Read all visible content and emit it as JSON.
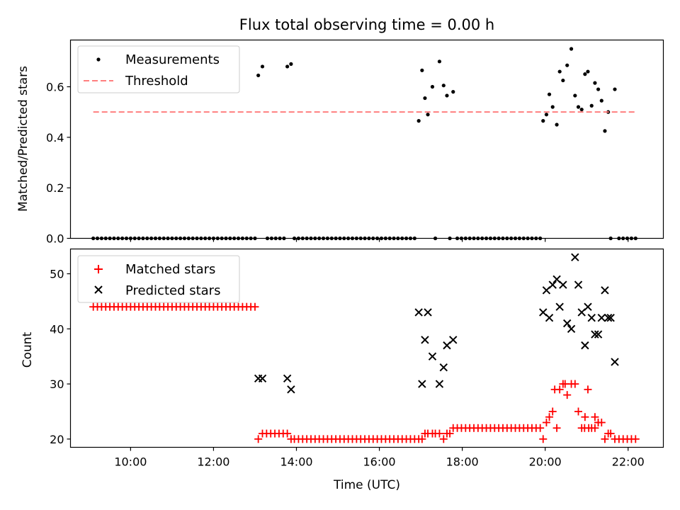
{
  "chart_data": [
    {
      "type": "scatter",
      "title": "Flux total observing time = 0.00 h",
      "xlabel": "",
      "ylabel": "Matched/Predicted stars",
      "xlim": [
        8.55,
        22.85
      ],
      "ylim": [
        0,
        0.785
      ],
      "yticks": [
        0.0,
        0.2,
        0.4,
        0.6
      ],
      "ytick_labels": [
        "0.0",
        "0.2",
        "0.4",
        "0.6"
      ],
      "xticks": [
        10,
        12,
        14,
        16,
        18,
        20,
        22
      ],
      "legend": {
        "placement": "top-left",
        "entries": [
          "Measurements",
          "Threshold"
        ]
      },
      "colors": {
        "measurements": "#000000",
        "threshold": "#ff7f7f"
      },
      "series": [
        {
          "name": "Measurements",
          "marker": "dot",
          "x": [
            9.1,
            9.2,
            9.3,
            9.4,
            9.5,
            9.6,
            9.7,
            9.8,
            9.9,
            10.0,
            10.1,
            10.2,
            10.3,
            10.4,
            10.5,
            10.6,
            10.7,
            10.8,
            10.9,
            11.0,
            11.1,
            11.2,
            11.3,
            11.4,
            11.5,
            11.6,
            11.7,
            11.8,
            11.9,
            12.0,
            12.1,
            12.2,
            12.3,
            12.4,
            12.5,
            12.6,
            12.7,
            12.8,
            12.9,
            13.0,
            13.08,
            13.18,
            13.3,
            13.4,
            13.5,
            13.6,
            13.7,
            13.78,
            13.87,
            13.95,
            14.05,
            14.15,
            14.25,
            14.35,
            14.45,
            14.55,
            14.65,
            14.75,
            14.85,
            14.95,
            15.05,
            15.15,
            15.25,
            15.35,
            15.45,
            15.55,
            15.65,
            15.75,
            15.85,
            15.95,
            16.05,
            16.15,
            16.25,
            16.35,
            16.45,
            16.55,
            16.65,
            16.75,
            16.85,
            16.95,
            17.03,
            17.1,
            17.17,
            17.28,
            17.35,
            17.45,
            17.55,
            17.63,
            17.7,
            17.78,
            17.88,
            17.98,
            18.08,
            18.18,
            18.28,
            18.38,
            18.48,
            18.58,
            18.68,
            18.78,
            18.88,
            18.98,
            19.08,
            19.18,
            19.28,
            19.38,
            19.48,
            19.58,
            19.68,
            19.78,
            19.88,
            19.95,
            20.03,
            20.1,
            20.18,
            20.28,
            20.35,
            20.43,
            20.53,
            20.63,
            20.72,
            20.8,
            20.88,
            20.96,
            21.03,
            21.12,
            21.2,
            21.28,
            21.36,
            21.44,
            21.52,
            21.58,
            21.68,
            21.78,
            21.88,
            21.98,
            22.08,
            22.18
          ],
          "y": [
            0,
            0,
            0,
            0,
            0,
            0,
            0,
            0,
            0,
            0,
            0,
            0,
            0,
            0,
            0,
            0,
            0,
            0,
            0,
            0,
            0,
            0,
            0,
            0,
            0,
            0,
            0,
            0,
            0,
            0,
            0,
            0,
            0,
            0,
            0,
            0,
            0,
            0,
            0,
            0,
            0.645,
            0.68,
            0,
            0,
            0,
            0,
            0,
            0.68,
            0.69,
            0,
            0,
            0,
            0,
            0,
            0,
            0,
            0,
            0,
            0,
            0,
            0,
            0,
            0,
            0,
            0,
            0,
            0,
            0,
            0,
            0,
            0,
            0,
            0,
            0,
            0,
            0,
            0,
            0,
            0,
            0.465,
            0.665,
            0.555,
            0.49,
            0.6,
            0,
            0.7,
            0.605,
            0.565,
            0,
            0.58,
            0,
            0,
            0,
            0,
            0,
            0,
            0,
            0,
            0,
            0,
            0,
            0,
            0,
            0,
            0,
            0,
            0,
            0,
            0,
            0,
            0,
            0.465,
            0.49,
            0.57,
            0.52,
            0.45,
            0.66,
            0.625,
            0.685,
            0.75,
            0.565,
            0.52,
            0.51,
            0.65,
            0.66,
            0.525,
            0.615,
            0.59,
            0.545,
            0.425,
            0.5,
            0,
            0.59,
            0,
            0,
            0,
            0,
            0
          ]
        },
        {
          "name": "Threshold",
          "marker": "dashed-line",
          "x": [
            9.1,
            22.2
          ],
          "y": [
            0.5,
            0.5
          ]
        }
      ]
    },
    {
      "type": "scatter",
      "title": "",
      "xlabel": "Time (UTC)",
      "ylabel": "Count",
      "xlim": [
        8.55,
        22.85
      ],
      "ylim": [
        18.5,
        54.5
      ],
      "yticks": [
        20,
        30,
        40,
        50
      ],
      "ytick_labels": [
        "20",
        "30",
        "40",
        "50"
      ],
      "xticks": [
        10,
        12,
        14,
        16,
        18,
        20,
        22
      ],
      "xtick_labels": [
        "10:00",
        "12:00",
        "14:00",
        "16:00",
        "18:00",
        "20:00",
        "22:00"
      ],
      "legend": {
        "placement": "top-left",
        "entries": [
          "Matched stars",
          "Predicted stars"
        ]
      },
      "colors": {
        "matched": "#ff0000",
        "predicted": "#000000"
      },
      "series": [
        {
          "name": "Matched stars",
          "marker": "plus",
          "x": [
            9.1,
            9.2,
            9.3,
            9.4,
            9.5,
            9.6,
            9.7,
            9.8,
            9.9,
            10.0,
            10.1,
            10.2,
            10.3,
            10.4,
            10.5,
            10.6,
            10.7,
            10.8,
            10.9,
            11.0,
            11.1,
            11.2,
            11.3,
            11.4,
            11.5,
            11.6,
            11.7,
            11.8,
            11.9,
            12.0,
            12.1,
            12.2,
            12.3,
            12.4,
            12.5,
            12.6,
            12.7,
            12.8,
            12.9,
            13.0,
            13.08,
            13.18,
            13.28,
            13.38,
            13.48,
            13.58,
            13.68,
            13.78,
            13.87,
            13.95,
            14.05,
            14.15,
            14.25,
            14.35,
            14.45,
            14.55,
            14.65,
            14.75,
            14.85,
            14.95,
            15.05,
            15.15,
            15.25,
            15.35,
            15.45,
            15.55,
            15.65,
            15.75,
            15.85,
            15.95,
            16.05,
            16.15,
            16.25,
            16.35,
            16.45,
            16.55,
            16.65,
            16.75,
            16.85,
            16.95,
            17.03,
            17.1,
            17.17,
            17.28,
            17.35,
            17.45,
            17.55,
            17.63,
            17.7,
            17.78,
            17.88,
            17.98,
            18.08,
            18.18,
            18.28,
            18.38,
            18.48,
            18.58,
            18.68,
            18.78,
            18.88,
            18.98,
            19.08,
            19.18,
            19.28,
            19.38,
            19.48,
            19.58,
            19.68,
            19.78,
            19.88,
            19.95,
            20.03,
            20.1,
            20.18,
            20.28,
            20.35,
            20.43,
            20.53,
            20.63,
            20.72,
            20.8,
            20.88,
            20.96,
            21.03,
            21.12,
            21.2,
            21.28,
            21.36,
            21.44,
            21.52,
            21.58,
            21.68,
            21.78,
            21.88,
            21.98,
            22.08,
            22.18,
            20.23,
            20.48,
            20.95,
            21.05,
            21.2,
            21.28
          ],
          "y": [
            44,
            44,
            44,
            44,
            44,
            44,
            44,
            44,
            44,
            44,
            44,
            44,
            44,
            44,
            44,
            44,
            44,
            44,
            44,
            44,
            44,
            44,
            44,
            44,
            44,
            44,
            44,
            44,
            44,
            44,
            44,
            44,
            44,
            44,
            44,
            44,
            44,
            44,
            44,
            44,
            20,
            21,
            21,
            21,
            21,
            21,
            21,
            21,
            20,
            20,
            20,
            20,
            20,
            20,
            20,
            20,
            20,
            20,
            20,
            20,
            20,
            20,
            20,
            20,
            20,
            20,
            20,
            20,
            20,
            20,
            20,
            20,
            20,
            20,
            20,
            20,
            20,
            20,
            20,
            20,
            20,
            21,
            21,
            21,
            21,
            21,
            20,
            21,
            21,
            22,
            22,
            22,
            22,
            22,
            22,
            22,
            22,
            22,
            22,
            22,
            22,
            22,
            22,
            22,
            22,
            22,
            22,
            22,
            22,
            22,
            22,
            20,
            23,
            24,
            25,
            22,
            29,
            30,
            28,
            30,
            30,
            25,
            22,
            24,
            29,
            22,
            24,
            23,
            23,
            20,
            21,
            21,
            20,
            20,
            20,
            20,
            20,
            20,
            29,
            30,
            22,
            22,
            22,
            23
          ]
        },
        {
          "name": "Predicted stars",
          "marker": "x",
          "x": [
            13.08,
            13.18,
            13.78,
            13.87,
            16.95,
            17.03,
            17.1,
            17.17,
            17.28,
            17.45,
            17.55,
            17.63,
            17.78,
            19.95,
            20.03,
            20.1,
            20.18,
            20.28,
            20.35,
            20.43,
            20.53,
            20.63,
            20.72,
            20.8,
            20.88,
            20.96,
            21.03,
            21.12,
            21.2,
            21.28,
            21.36,
            21.44,
            21.52,
            21.58,
            21.68
          ],
          "y": [
            31,
            31,
            31,
            29,
            43,
            30,
            38,
            43,
            35,
            30,
            33,
            37,
            38,
            43,
            47,
            42,
            48,
            49,
            44,
            48,
            41,
            40,
            53,
            48,
            43,
            37,
            44,
            42,
            39,
            39,
            42,
            47,
            42,
            42,
            34
          ]
        }
      ]
    }
  ]
}
